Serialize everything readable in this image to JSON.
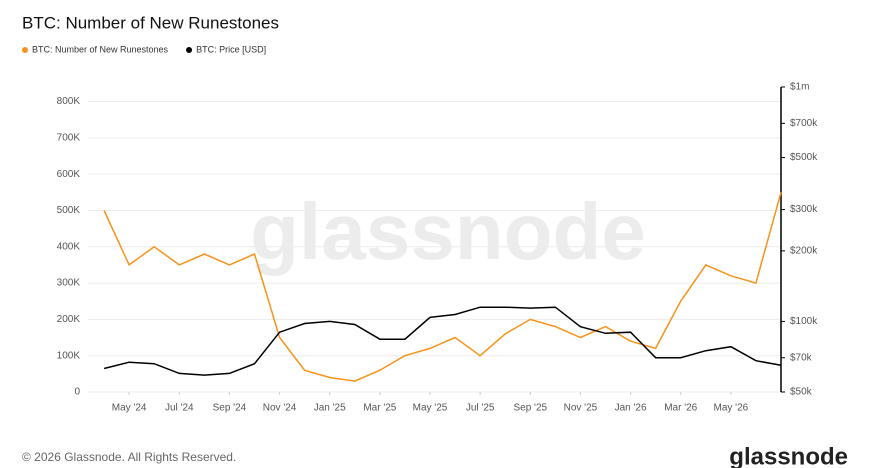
{
  "chart_data": {
    "type": "line",
    "title": "BTC: Number of New Runestones",
    "x": [
      "2024-04",
      "2024-05",
      "2024-06",
      "2024-07",
      "2024-08",
      "2024-09",
      "2024-10",
      "2024-11",
      "2024-12",
      "2025-01",
      "2025-02",
      "2025-03",
      "2025-04",
      "2025-05",
      "2025-06",
      "2025-07",
      "2025-08",
      "2025-09",
      "2025-10",
      "2025-11",
      "2025-12",
      "2026-01",
      "2026-02",
      "2026-03",
      "2026-04",
      "2026-05",
      "2026-06",
      "2026-07"
    ],
    "series": [
      {
        "name": "BTC: Number of New Runestones",
        "color": "#f7931a",
        "values": [
          500000,
          350000,
          400000,
          350000,
          380000,
          350000,
          380000,
          150000,
          60000,
          40000,
          30000,
          60000,
          100000,
          120000,
          150000,
          100000,
          160000,
          200000,
          180000,
          150000,
          180000,
          140000,
          120000,
          250000,
          350000,
          320000,
          300000,
          550000
        ]
      },
      {
        "name": "BTC: Price [USD]",
        "color": "#000000",
        "axis": "y2",
        "values": [
          63000,
          67000,
          66000,
          60000,
          59000,
          60000,
          66000,
          90000,
          98000,
          100000,
          97000,
          84000,
          84000,
          104000,
          107000,
          115000,
          115000,
          114000,
          115000,
          95000,
          89000,
          90000,
          70000,
          70000,
          75000,
          78000,
          68000,
          65000
        ]
      }
    ],
    "xlim": [
      "2024-03",
      "2026-07"
    ],
    "xticks": [
      {
        "value": "2024-05",
        "label": "May '24"
      },
      {
        "value": "2024-07",
        "label": "Jul '24"
      },
      {
        "value": "2024-09",
        "label": "Sep '24"
      },
      {
        "value": "2024-11",
        "label": "Nov '24"
      },
      {
        "value": "2025-01",
        "label": "Jan '25"
      },
      {
        "value": "2025-03",
        "label": "Mar '25"
      },
      {
        "value": "2025-05",
        "label": "May '25"
      },
      {
        "value": "2025-07",
        "label": "Jul '25"
      },
      {
        "value": "2025-09",
        "label": "Sep '25"
      },
      {
        "value": "2025-11",
        "label": "Nov '25"
      },
      {
        "value": "2026-01",
        "label": "Jan '26"
      },
      {
        "value": "2026-03",
        "label": "Mar '26"
      },
      {
        "value": "2026-05",
        "label": "May '26"
      }
    ],
    "ylim": [
      0,
      840000
    ],
    "yticks": [
      0,
      {
        "value": 100000,
        "label": "100K"
      },
      {
        "value": 200000,
        "label": "200K"
      },
      {
        "value": 300000,
        "label": "300K"
      },
      {
        "value": 400000,
        "label": "400K"
      },
      {
        "value": 500000,
        "label": "500K"
      },
      {
        "value": 600000,
        "label": "600K"
      },
      {
        "value": 700000,
        "label": "700K"
      },
      {
        "value": 800000,
        "label": "800K"
      }
    ],
    "y2lim": [
      50000,
      1000000
    ],
    "y2scale": "log",
    "y2ticks": [
      {
        "value": 50000,
        "label": "$50k"
      },
      {
        "value": 70000,
        "label": "$70k"
      },
      {
        "value": 100000,
        "label": "$100k"
      },
      {
        "value": 200000,
        "label": "$200k"
      },
      {
        "value": 300000,
        "label": "$300k"
      },
      {
        "value": 500000,
        "label": "$500k"
      },
      {
        "value": 700000,
        "label": "$700k"
      },
      {
        "value": 1000000,
        "label": "$1m"
      }
    ],
    "grid": true,
    "watermark": "glassnode"
  },
  "footer": "© 2026 Glassnode. All Rights Reserved.",
  "logo": "glassnode"
}
